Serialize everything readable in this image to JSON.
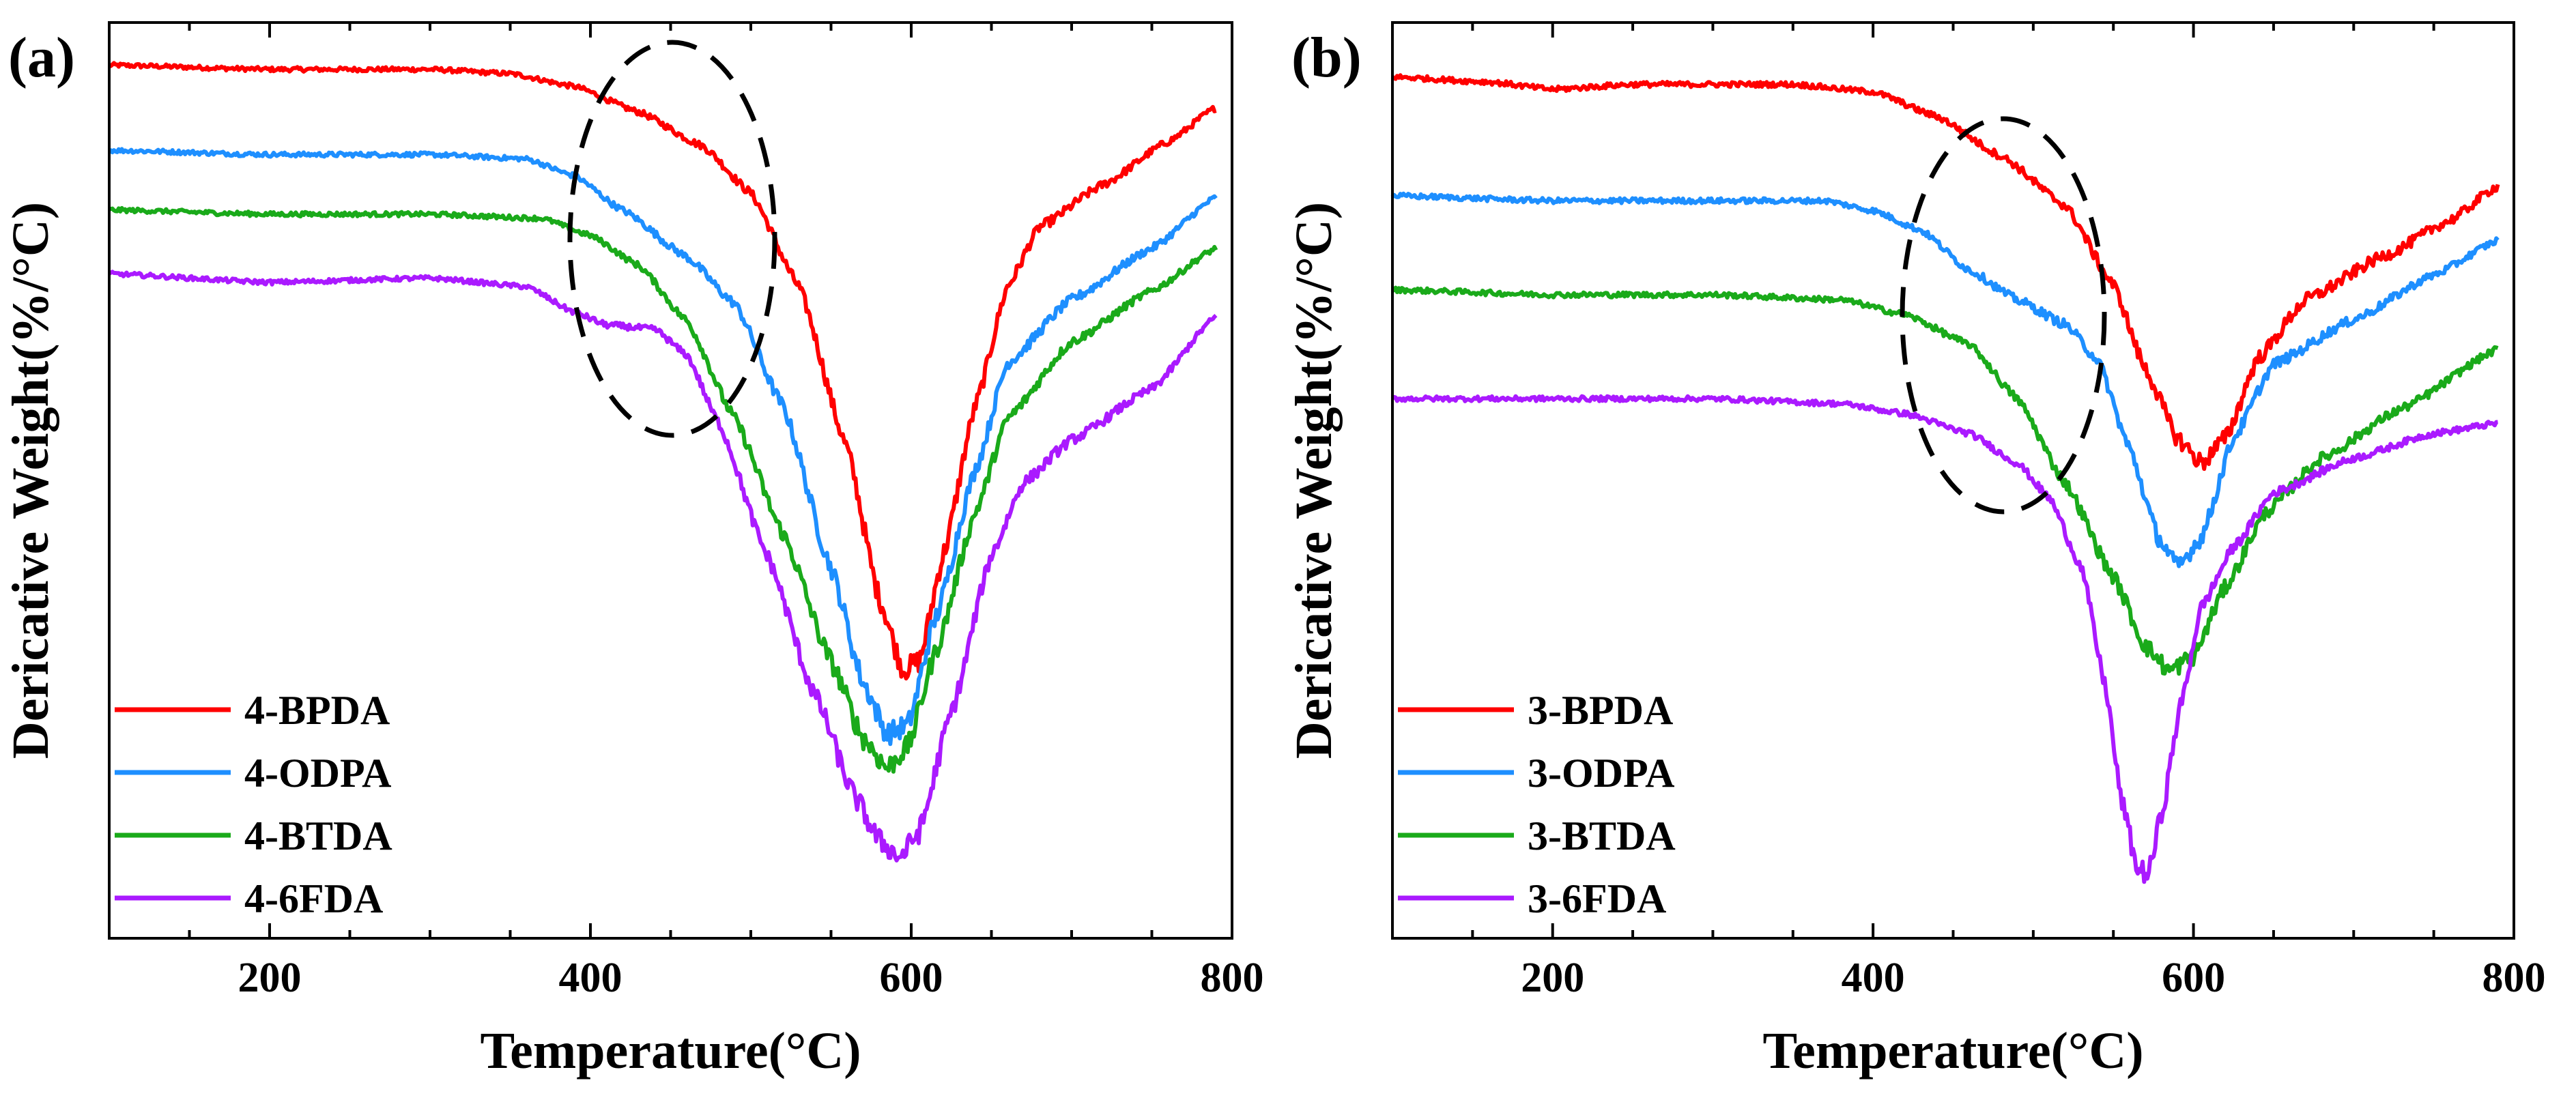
{
  "chart_data": [
    {
      "type": "line",
      "panel_label": "(a)",
      "xlabel": "Temperature(°C)",
      "ylabel": "Dericative Weight(%/°C)",
      "xlim": [
        100,
        800
      ],
      "xticks": [
        200,
        400,
        600,
        800
      ],
      "yticks_shown": false,
      "grid": false,
      "legend_position": "lower-left",
      "annotation": "dashed ellipse around 350–510 °C",
      "series": [
        {
          "name": "4-BPDA",
          "color": "#ff0000",
          "points": [
            [
              100,
              0.0
            ],
            [
              200,
              -0.1
            ],
            [
              300,
              -0.1
            ],
            [
              350,
              -0.2
            ],
            [
              390,
              -0.5
            ],
            [
              430,
              -1.1
            ],
            [
              470,
              -1.9
            ],
            [
              500,
              -3.0
            ],
            [
              530,
              -5.2
            ],
            [
              560,
              -9.0
            ],
            [
              580,
              -12.5
            ],
            [
              595,
              -14.2
            ],
            [
              605,
              -14.0
            ],
            [
              620,
              -11.5
            ],
            [
              640,
              -8.0
            ],
            [
              660,
              -5.2
            ],
            [
              680,
              -3.8
            ],
            [
              720,
              -2.8
            ],
            [
              760,
              -1.8
            ],
            [
              790,
              -1.0
            ]
          ]
        },
        {
          "name": "4-ODPA",
          "color": "#1e8fff",
          "points": [
            [
              100,
              -2.0
            ],
            [
              200,
              -2.1
            ],
            [
              300,
              -2.1
            ],
            [
              360,
              -2.2
            ],
            [
              390,
              -2.6
            ],
            [
              420,
              -3.4
            ],
            [
              460,
              -4.5
            ],
            [
              490,
              -5.6
            ],
            [
              520,
              -8.0
            ],
            [
              550,
              -11.8
            ],
            [
              570,
              -14.5
            ],
            [
              585,
              -15.7
            ],
            [
              598,
              -15.5
            ],
            [
              615,
              -13.0
            ],
            [
              640,
              -9.5
            ],
            [
              660,
              -7.0
            ],
            [
              700,
              -5.5
            ],
            [
              750,
              -4.3
            ],
            [
              790,
              -3.1
            ]
          ]
        },
        {
          "name": "4-BTDA",
          "color": "#1aaa1a",
          "points": [
            [
              100,
              -3.4
            ],
            [
              200,
              -3.5
            ],
            [
              300,
              -3.5
            ],
            [
              370,
              -3.6
            ],
            [
              400,
              -4.0
            ],
            [
              430,
              -4.7
            ],
            [
              460,
              -6.0
            ],
            [
              490,
              -8.3
            ],
            [
              520,
              -11.0
            ],
            [
              550,
              -14.0
            ],
            [
              570,
              -15.8
            ],
            [
              585,
              -16.5
            ],
            [
              598,
              -16.0
            ],
            [
              615,
              -13.8
            ],
            [
              640,
              -10.5
            ],
            [
              660,
              -8.3
            ],
            [
              700,
              -6.5
            ],
            [
              750,
              -5.3
            ],
            [
              790,
              -4.3
            ]
          ]
        },
        {
          "name": "4-6FDA",
          "color": "#aa1aff",
          "points": [
            [
              100,
              -4.9
            ],
            [
              200,
              -5.1
            ],
            [
              300,
              -5.0
            ],
            [
              360,
              -5.2
            ],
            [
              390,
              -5.8
            ],
            [
              410,
              -6.1
            ],
            [
              440,
              -6.2
            ],
            [
              460,
              -6.8
            ],
            [
              480,
              -8.4
            ],
            [
              510,
              -11.5
            ],
            [
              540,
              -14.8
            ],
            [
              565,
              -17.2
            ],
            [
              580,
              -18.2
            ],
            [
              593,
              -18.6
            ],
            [
              605,
              -18.0
            ],
            [
              625,
              -15.2
            ],
            [
              650,
              -11.5
            ],
            [
              670,
              -9.8
            ],
            [
              700,
              -8.8
            ],
            [
              750,
              -7.6
            ],
            [
              790,
              -5.9
            ]
          ]
        }
      ]
    },
    {
      "type": "line",
      "panel_label": "(b)",
      "xlabel": "Temperature(°C)",
      "ylabel": "Dericative Weight(%/°C)",
      "xlim": [
        100,
        800
      ],
      "xticks": [
        200,
        400,
        600,
        800
      ],
      "yticks_shown": false,
      "grid": false,
      "legend_position": "lower-left",
      "annotation": "dashed ellipse around 420–540 °C",
      "series": [
        {
          "name": "3-BPDA",
          "color": "#ff0000",
          "points": [
            [
              100,
              -0.1
            ],
            [
              160,
              -0.2
            ],
            [
              200,
              -0.35
            ],
            [
              250,
              -0.25
            ],
            [
              350,
              -0.25
            ],
            [
              400,
              -0.4
            ],
            [
              440,
              -0.9
            ],
            [
              480,
              -1.7
            ],
            [
              520,
              -2.7
            ],
            [
              550,
              -4.3
            ],
            [
              570,
              -6.0
            ],
            [
              590,
              -7.4
            ],
            [
              605,
              -7.9
            ],
            [
              620,
              -7.4
            ],
            [
              640,
              -5.8
            ],
            [
              670,
              -4.6
            ],
            [
              720,
              -3.7
            ],
            [
              760,
              -3.0
            ],
            [
              790,
              -2.3
            ]
          ]
        },
        {
          "name": "3-ODPA",
          "color": "#1e8fff",
          "points": [
            [
              100,
              -2.5
            ],
            [
              200,
              -2.6
            ],
            [
              300,
              -2.6
            ],
            [
              370,
              -2.6
            ],
            [
              400,
              -2.8
            ],
            [
              430,
              -3.2
            ],
            [
              460,
              -4.0
            ],
            [
              490,
              -4.6
            ],
            [
              520,
              -5.1
            ],
            [
              540,
              -5.8
            ],
            [
              560,
              -7.6
            ],
            [
              578,
              -9.4
            ],
            [
              590,
              -10.0
            ],
            [
              605,
              -9.4
            ],
            [
              625,
              -7.4
            ],
            [
              650,
              -5.9
            ],
            [
              700,
              -5.0
            ],
            [
              750,
              -4.1
            ],
            [
              790,
              -3.4
            ]
          ]
        },
        {
          "name": "3-BTDA",
          "color": "#1aaa1a",
          "points": [
            [
              100,
              -4.4
            ],
            [
              200,
              -4.5
            ],
            [
              300,
              -4.5
            ],
            [
              380,
              -4.6
            ],
            [
              420,
              -4.9
            ],
            [
              460,
              -5.5
            ],
            [
              490,
              -6.6
            ],
            [
              520,
              -8.3
            ],
            [
              550,
              -10.2
            ],
            [
              570,
              -11.6
            ],
            [
              585,
              -12.1
            ],
            [
              600,
              -11.8
            ],
            [
              620,
              -10.4
            ],
            [
              645,
              -8.9
            ],
            [
              680,
              -7.8
            ],
            [
              730,
              -6.8
            ],
            [
              790,
              -5.6
            ]
          ]
        },
        {
          "name": "3-6FDA",
          "color": "#aa1aff",
          "points": [
            [
              100,
              -6.6
            ],
            [
              200,
              -6.6
            ],
            [
              300,
              -6.6
            ],
            [
              380,
              -6.7
            ],
            [
              420,
              -6.9
            ],
            [
              460,
              -7.3
            ],
            [
              490,
              -7.9
            ],
            [
              510,
              -8.6
            ],
            [
              530,
              -10.0
            ],
            [
              545,
              -12.4
            ],
            [
              555,
              -14.7
            ],
            [
              565,
              -16.1
            ],
            [
              572,
              -16.2
            ],
            [
              580,
              -15.0
            ],
            [
              592,
              -12.8
            ],
            [
              605,
              -10.8
            ],
            [
              625,
              -9.6
            ],
            [
              650,
              -8.5
            ],
            [
              700,
              -7.8
            ],
            [
              750,
              -7.3
            ],
            [
              790,
              -7.1
            ]
          ]
        }
      ]
    }
  ]
}
